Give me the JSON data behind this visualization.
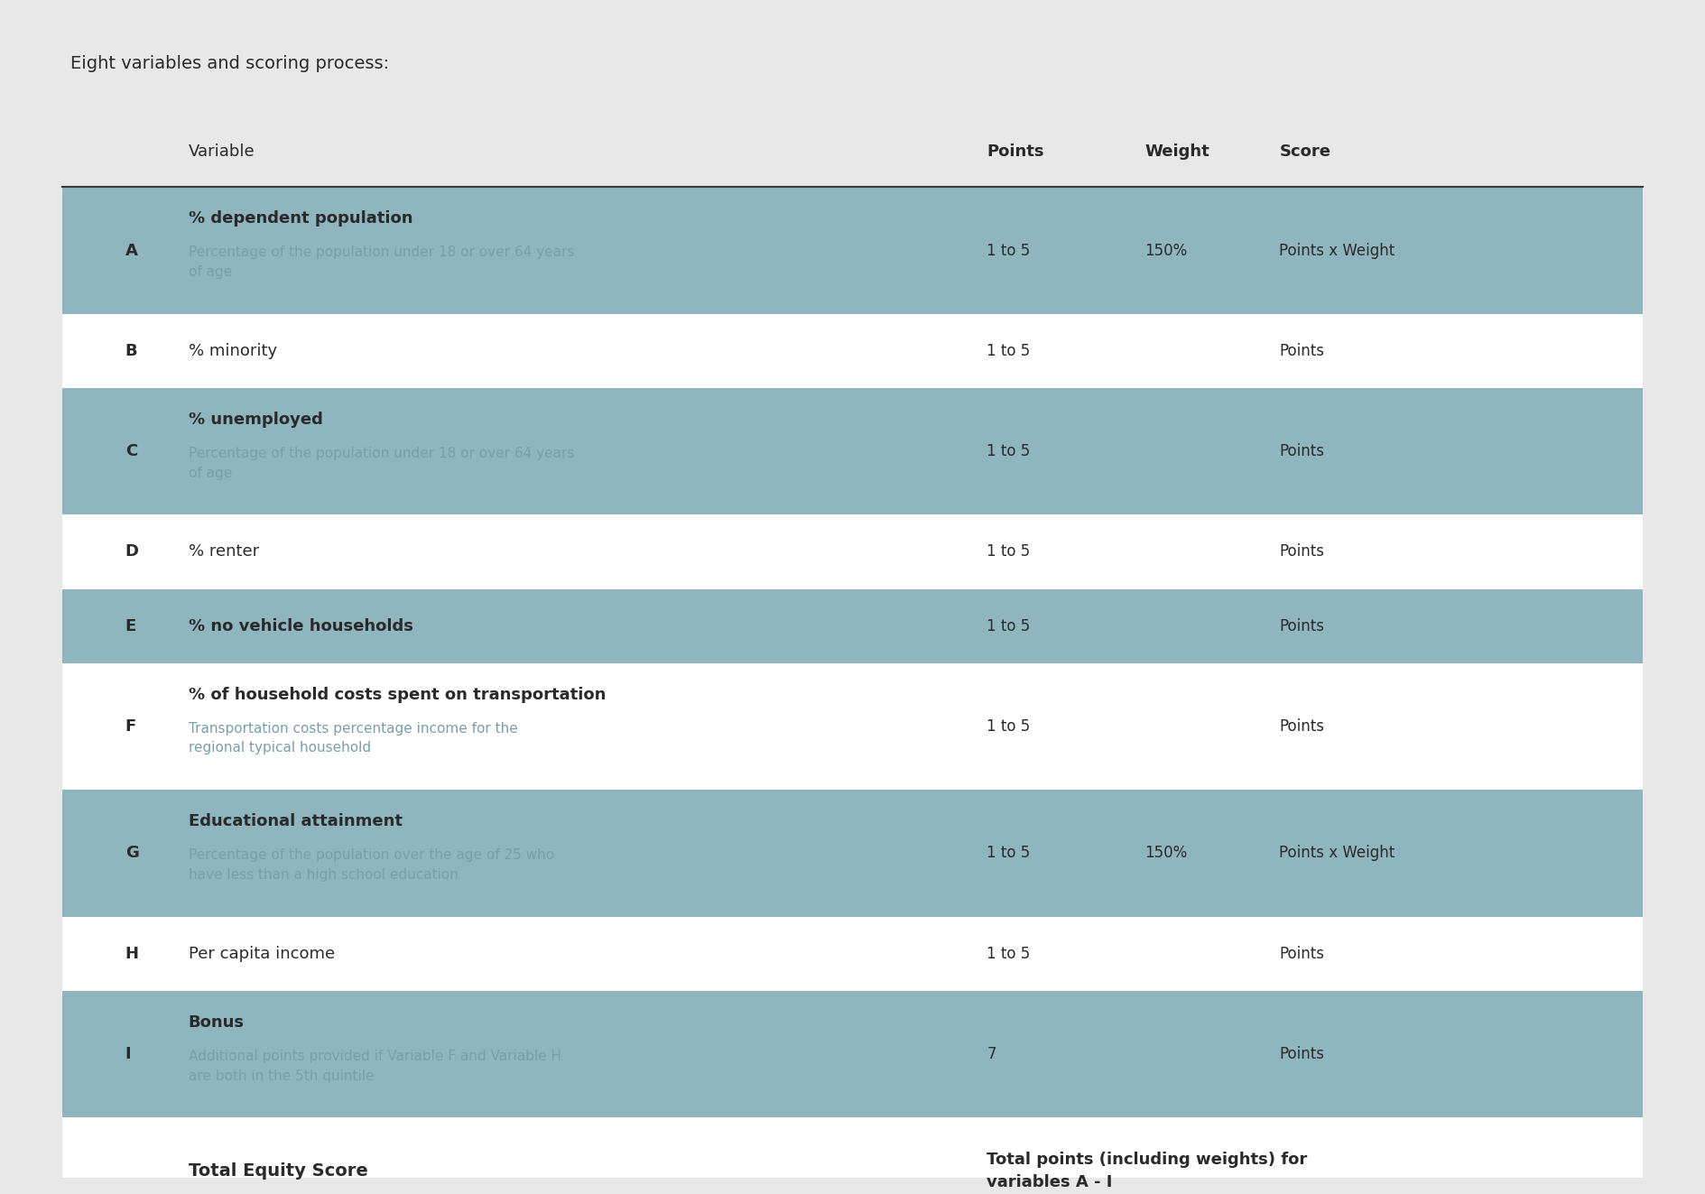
{
  "title": "Eight variables and scoring process:",
  "bg_color": "#e8e8e8",
  "row_shaded_color": "#8fb5bf",
  "row_white_color": "#ffffff",
  "header_line_color": "#3a3a3a",
  "text_dark": "#2a2a2a",
  "text_subtitle": "#7a9faa",
  "col_positions": {
    "letter": 0.04,
    "variable": 0.08,
    "points": 0.585,
    "weight": 0.685,
    "score": 0.77
  },
  "header": {
    "variable": "Variable",
    "points": "Points",
    "weight": "Weight",
    "score": "Score"
  },
  "rows": [
    {
      "letter": "A",
      "title": "% dependent population",
      "subtitle": "Percentage of the population under 18 or over 64 years\nof age",
      "points": "1 to 5",
      "weight": "150%",
      "score": "Points x Weight",
      "shaded": true,
      "title_bold": true
    },
    {
      "letter": "B",
      "title": "% minority",
      "subtitle": "",
      "points": "1 to 5",
      "weight": "",
      "score": "Points",
      "shaded": false,
      "title_bold": false
    },
    {
      "letter": "C",
      "title": "% unemployed",
      "subtitle": "Percentage of the population under 18 or over 64 years\nof age",
      "points": "1 to 5",
      "weight": "",
      "score": "Points",
      "shaded": true,
      "title_bold": true
    },
    {
      "letter": "D",
      "title": "% renter",
      "subtitle": "",
      "points": "1 to 5",
      "weight": "",
      "score": "Points",
      "shaded": false,
      "title_bold": false
    },
    {
      "letter": "E",
      "title": "% no vehicle households",
      "subtitle": "",
      "points": "1 to 5",
      "weight": "",
      "score": "Points",
      "shaded": true,
      "title_bold": true
    },
    {
      "letter": "F",
      "title": "% of household costs spent on transportation",
      "subtitle": "Transportation costs percentage income for the\nregional typical household",
      "points": "1 to 5",
      "weight": "",
      "score": "Points",
      "shaded": false,
      "title_bold": true
    },
    {
      "letter": "G",
      "title": "Educational attainment",
      "subtitle": "Percentage of the population over the age of 25 who\nhave less than a high school education",
      "points": "1 to 5",
      "weight": "150%",
      "score": "Points x Weight",
      "shaded": true,
      "title_bold": true
    },
    {
      "letter": "H",
      "title": "Per capita income",
      "subtitle": "",
      "points": "1 to 5",
      "weight": "",
      "score": "Points",
      "shaded": false,
      "title_bold": false
    },
    {
      "letter": "I",
      "title": "Bonus",
      "subtitle": "Additional points provided if Variable F and Variable H\nare both in the 5th quintile",
      "points": "7",
      "weight": "",
      "score": "Points",
      "shaded": true,
      "title_bold": true
    }
  ],
  "footer": {
    "left": "Total Equity Score",
    "right": "Total points (including weights) for\nvariables A - I"
  }
}
